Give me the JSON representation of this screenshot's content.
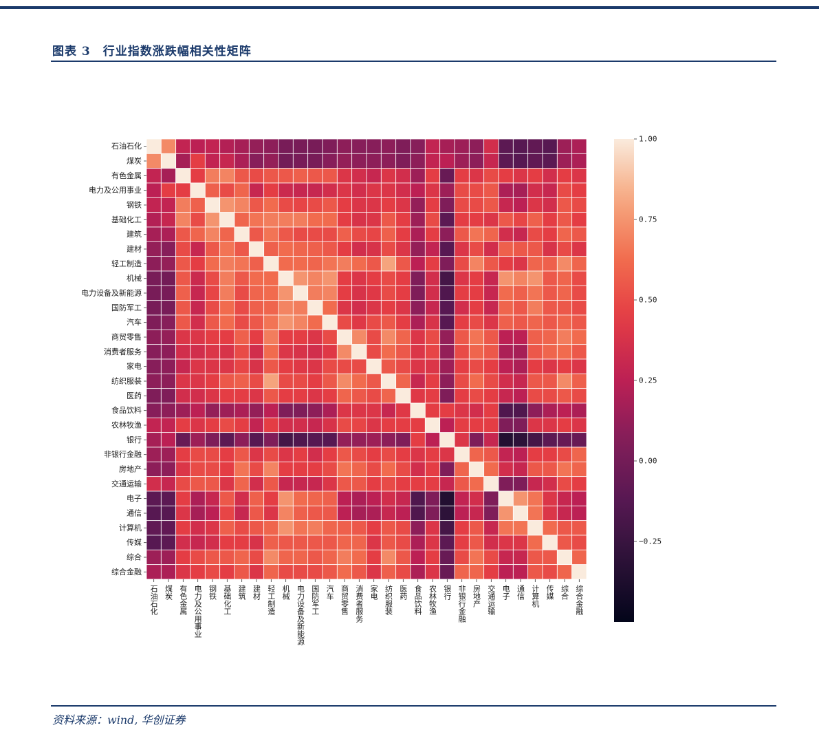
{
  "figure": {
    "title": "图表 3　行业指数涨跌幅相关性矩阵",
    "source": "资料来源：wind, 华创证券"
  },
  "chart_data": {
    "type": "heatmap",
    "title": "",
    "xlabel": "",
    "ylabel": "",
    "labels": [
      "石油石化",
      "煤炭",
      "有色金属",
      "电力及公用事业",
      "钢铁",
      "基础化工",
      "建筑",
      "建材",
      "轻工制造",
      "机械",
      "电力设备及新能源",
      "国防军工",
      "汽车",
      "商贸零售",
      "消费者服务",
      "家电",
      "纺织服装",
      "医药",
      "食品饮料",
      "农林牧渔",
      "银行",
      "非银行金融",
      "房地产",
      "交通运输",
      "电子",
      "通信",
      "计算机",
      "传媒",
      "综合",
      "综合金融"
    ],
    "colorbar": {
      "min": -0.5,
      "max": 1.0,
      "ticks": [
        "1.00",
        "0.75",
        "0.50",
        "0.25",
        "0.00",
        "−0.25"
      ],
      "tick_values": [
        1.0,
        0.75,
        0.5,
        0.25,
        0.0,
        -0.25
      ]
    },
    "matrix": [
      [
        1.0,
        0.72,
        0.28,
        0.25,
        0.28,
        0.22,
        0.18,
        0.12,
        0.1,
        0.02,
        0.02,
        0.02,
        0.05,
        0.1,
        0.08,
        0.08,
        0.1,
        0.05,
        0.08,
        0.28,
        0.18,
        0.15,
        0.1,
        0.35,
        -0.1,
        -0.12,
        -0.08,
        -0.12,
        0.15,
        0.2
      ],
      [
        0.72,
        1.0,
        0.18,
        0.45,
        0.28,
        0.3,
        0.2,
        0.08,
        0.12,
        0.0,
        0.02,
        0.02,
        0.08,
        0.12,
        0.1,
        0.1,
        0.1,
        0.05,
        0.1,
        0.28,
        0.25,
        0.15,
        0.1,
        0.3,
        -0.1,
        -0.12,
        -0.08,
        -0.1,
        0.15,
        0.2
      ],
      [
        0.28,
        0.18,
        1.0,
        0.45,
        0.68,
        0.7,
        0.55,
        0.5,
        0.55,
        0.55,
        0.58,
        0.55,
        0.55,
        0.4,
        0.35,
        0.3,
        0.4,
        0.35,
        0.15,
        0.45,
        -0.05,
        0.45,
        0.4,
        0.5,
        0.45,
        0.4,
        0.45,
        0.35,
        0.45,
        0.4
      ],
      [
        0.25,
        0.45,
        0.45,
        1.0,
        0.58,
        0.5,
        0.6,
        0.3,
        0.45,
        0.32,
        0.3,
        0.3,
        0.35,
        0.4,
        0.35,
        0.4,
        0.4,
        0.35,
        0.25,
        0.4,
        0.15,
        0.5,
        0.5,
        0.55,
        0.2,
        0.18,
        0.35,
        0.3,
        0.5,
        0.45
      ],
      [
        0.28,
        0.28,
        0.68,
        0.58,
        1.0,
        0.75,
        0.7,
        0.55,
        0.62,
        0.5,
        0.48,
        0.5,
        0.55,
        0.45,
        0.4,
        0.4,
        0.45,
        0.4,
        0.12,
        0.45,
        0.05,
        0.5,
        0.5,
        0.55,
        0.3,
        0.25,
        0.4,
        0.35,
        0.55,
        0.5
      ],
      [
        0.22,
        0.3,
        0.7,
        0.5,
        0.75,
        1.0,
        0.6,
        0.65,
        0.68,
        0.68,
        0.68,
        0.62,
        0.62,
        0.45,
        0.38,
        0.4,
        0.55,
        0.45,
        0.15,
        0.5,
        -0.1,
        0.45,
        0.45,
        0.4,
        0.55,
        0.48,
        0.58,
        0.45,
        0.55,
        0.45
      ],
      [
        0.18,
        0.2,
        0.55,
        0.6,
        0.7,
        0.6,
        1.0,
        0.55,
        0.65,
        0.55,
        0.5,
        0.5,
        0.5,
        0.58,
        0.5,
        0.48,
        0.58,
        0.45,
        0.2,
        0.45,
        0.1,
        0.55,
        0.65,
        0.6,
        0.35,
        0.3,
        0.5,
        0.45,
        0.6,
        0.55
      ],
      [
        0.12,
        0.08,
        0.5,
        0.3,
        0.55,
        0.65,
        0.55,
        1.0,
        0.58,
        0.62,
        0.6,
        0.58,
        0.55,
        0.45,
        0.35,
        0.38,
        0.5,
        0.4,
        0.12,
        0.28,
        -0.12,
        0.4,
        0.5,
        0.35,
        0.58,
        0.55,
        0.55,
        0.38,
        0.5,
        0.4
      ],
      [
        0.1,
        0.12,
        0.55,
        0.45,
        0.62,
        0.68,
        0.65,
        0.58,
        1.0,
        0.62,
        0.62,
        0.6,
        0.65,
        0.68,
        0.62,
        0.55,
        0.8,
        0.55,
        0.25,
        0.45,
        0.05,
        0.5,
        0.7,
        0.55,
        0.45,
        0.4,
        0.6,
        0.58,
        0.72,
        0.6
      ],
      [
        0.02,
        0.0,
        0.55,
        0.32,
        0.5,
        0.68,
        0.55,
        0.62,
        0.62,
        1.0,
        0.75,
        0.7,
        0.75,
        0.45,
        0.4,
        0.45,
        0.5,
        0.45,
        0.05,
        0.35,
        -0.2,
        0.4,
        0.45,
        0.3,
        0.75,
        0.7,
        0.75,
        0.55,
        0.6,
        0.5
      ],
      [
        0.02,
        0.02,
        0.58,
        0.3,
        0.48,
        0.68,
        0.5,
        0.6,
        0.62,
        0.75,
        1.0,
        0.68,
        0.7,
        0.45,
        0.38,
        0.42,
        0.5,
        0.45,
        0.05,
        0.35,
        -0.15,
        0.45,
        0.45,
        0.3,
        0.62,
        0.58,
        0.65,
        0.55,
        0.6,
        0.5
      ],
      [
        0.02,
        0.02,
        0.55,
        0.3,
        0.5,
        0.62,
        0.5,
        0.58,
        0.6,
        0.7,
        0.68,
        1.0,
        0.62,
        0.4,
        0.35,
        0.4,
        0.45,
        0.4,
        0.1,
        0.3,
        -0.12,
        0.35,
        0.45,
        0.3,
        0.6,
        0.55,
        0.68,
        0.55,
        0.55,
        0.5
      ],
      [
        0.05,
        0.08,
        0.55,
        0.35,
        0.55,
        0.62,
        0.5,
        0.55,
        0.65,
        0.75,
        0.7,
        0.62,
        1.0,
        0.5,
        0.42,
        0.5,
        0.55,
        0.45,
        0.2,
        0.38,
        -0.12,
        0.45,
        0.5,
        0.4,
        0.58,
        0.55,
        0.6,
        0.55,
        0.6,
        0.55
      ],
      [
        0.1,
        0.12,
        0.4,
        0.4,
        0.45,
        0.45,
        0.58,
        0.45,
        0.68,
        0.45,
        0.45,
        0.4,
        0.5,
        1.0,
        0.72,
        0.5,
        0.72,
        0.6,
        0.4,
        0.5,
        0.12,
        0.55,
        0.65,
        0.55,
        0.25,
        0.25,
        0.58,
        0.6,
        0.68,
        0.62
      ],
      [
        0.08,
        0.1,
        0.35,
        0.35,
        0.4,
        0.38,
        0.5,
        0.35,
        0.62,
        0.4,
        0.38,
        0.35,
        0.42,
        0.72,
        1.0,
        0.5,
        0.62,
        0.55,
        0.4,
        0.48,
        0.12,
        0.5,
        0.6,
        0.55,
        0.2,
        0.18,
        0.55,
        0.6,
        0.62,
        0.55
      ],
      [
        0.08,
        0.1,
        0.3,
        0.4,
        0.4,
        0.4,
        0.48,
        0.38,
        0.55,
        0.45,
        0.42,
        0.4,
        0.5,
        0.5,
        0.5,
        1.0,
        0.55,
        0.5,
        0.4,
        0.4,
        0.15,
        0.45,
        0.5,
        0.45,
        0.25,
        0.2,
        0.45,
        0.4,
        0.45,
        0.4
      ],
      [
        0.1,
        0.1,
        0.4,
        0.4,
        0.45,
        0.55,
        0.58,
        0.5,
        0.8,
        0.5,
        0.5,
        0.45,
        0.55,
        0.72,
        0.62,
        0.55,
        1.0,
        0.6,
        0.3,
        0.45,
        0.1,
        0.5,
        0.62,
        0.5,
        0.35,
        0.3,
        0.55,
        0.55,
        0.72,
        0.58
      ],
      [
        0.05,
        0.05,
        0.35,
        0.35,
        0.4,
        0.45,
        0.45,
        0.4,
        0.55,
        0.45,
        0.45,
        0.4,
        0.45,
        0.6,
        0.55,
        0.5,
        0.6,
        1.0,
        0.42,
        0.45,
        0.05,
        0.45,
        0.5,
        0.45,
        0.3,
        0.25,
        0.5,
        0.5,
        0.55,
        0.5
      ],
      [
        0.08,
        0.1,
        0.15,
        0.25,
        0.12,
        0.15,
        0.2,
        0.12,
        0.25,
        0.05,
        0.05,
        0.1,
        0.2,
        0.4,
        0.4,
        0.4,
        0.3,
        0.42,
        1.0,
        0.45,
        0.45,
        0.4,
        0.35,
        0.45,
        -0.15,
        -0.15,
        0.1,
        0.2,
        0.25,
        0.2
      ],
      [
        0.28,
        0.28,
        0.45,
        0.4,
        0.45,
        0.5,
        0.45,
        0.28,
        0.45,
        0.35,
        0.35,
        0.3,
        0.38,
        0.5,
        0.48,
        0.4,
        0.45,
        0.45,
        0.45,
        1.0,
        0.25,
        0.45,
        0.45,
        0.45,
        0.05,
        0.05,
        0.4,
        0.4,
        0.45,
        0.4
      ],
      [
        0.18,
        0.25,
        -0.05,
        0.15,
        0.05,
        -0.1,
        0.1,
        -0.12,
        0.05,
        -0.2,
        -0.15,
        -0.12,
        -0.12,
        0.12,
        0.12,
        0.15,
        0.1,
        0.05,
        0.45,
        0.25,
        1.0,
        0.4,
        0.05,
        0.3,
        -0.35,
        -0.3,
        -0.2,
        -0.1,
        -0.05,
        -0.05
      ],
      [
        0.15,
        0.15,
        0.45,
        0.5,
        0.5,
        0.45,
        0.55,
        0.4,
        0.5,
        0.4,
        0.45,
        0.35,
        0.45,
        0.55,
        0.5,
        0.45,
        0.5,
        0.45,
        0.4,
        0.45,
        0.4,
        1.0,
        0.6,
        0.55,
        0.28,
        0.25,
        0.45,
        0.45,
        0.5,
        0.6
      ],
      [
        0.1,
        0.1,
        0.4,
        0.5,
        0.5,
        0.45,
        0.65,
        0.5,
        0.7,
        0.45,
        0.45,
        0.45,
        0.5,
        0.65,
        0.6,
        0.5,
        0.62,
        0.5,
        0.35,
        0.45,
        0.05,
        0.6,
        1.0,
        0.62,
        0.35,
        0.3,
        0.55,
        0.55,
        0.65,
        0.6
      ],
      [
        0.35,
        0.3,
        0.5,
        0.55,
        0.55,
        0.4,
        0.6,
        0.35,
        0.55,
        0.3,
        0.3,
        0.3,
        0.4,
        0.55,
        0.55,
        0.45,
        0.5,
        0.45,
        0.45,
        0.45,
        0.3,
        0.55,
        0.62,
        1.0,
        0.05,
        0.05,
        0.3,
        0.35,
        0.5,
        0.45
      ],
      [
        -0.1,
        -0.1,
        0.45,
        0.2,
        0.3,
        0.55,
        0.35,
        0.58,
        0.45,
        0.75,
        0.62,
        0.6,
        0.58,
        0.25,
        0.2,
        0.25,
        0.35,
        0.3,
        -0.15,
        0.05,
        -0.35,
        0.28,
        0.35,
        0.05,
        1.0,
        0.75,
        0.65,
        0.4,
        0.3,
        0.25
      ],
      [
        -0.12,
        -0.12,
        0.4,
        0.18,
        0.25,
        0.48,
        0.3,
        0.55,
        0.4,
        0.7,
        0.58,
        0.55,
        0.55,
        0.25,
        0.18,
        0.2,
        0.3,
        0.25,
        -0.15,
        0.05,
        -0.3,
        0.25,
        0.3,
        0.05,
        0.75,
        1.0,
        0.65,
        0.4,
        0.3,
        0.25
      ],
      [
        -0.08,
        -0.08,
        0.45,
        0.35,
        0.4,
        0.58,
        0.5,
        0.55,
        0.6,
        0.75,
        0.65,
        0.68,
        0.6,
        0.58,
        0.55,
        0.45,
        0.55,
        0.5,
        0.1,
        0.4,
        -0.2,
        0.45,
        0.55,
        0.3,
        0.65,
        0.65,
        1.0,
        0.62,
        0.55,
        0.55
      ],
      [
        -0.12,
        -0.1,
        0.35,
        0.3,
        0.35,
        0.45,
        0.45,
        0.38,
        0.58,
        0.55,
        0.55,
        0.55,
        0.55,
        0.6,
        0.6,
        0.4,
        0.55,
        0.5,
        0.2,
        0.4,
        -0.1,
        0.45,
        0.55,
        0.35,
        0.4,
        0.4,
        0.62,
        1.0,
        0.55,
        0.5
      ],
      [
        0.15,
        0.15,
        0.45,
        0.5,
        0.55,
        0.55,
        0.6,
        0.5,
        0.72,
        0.6,
        0.6,
        0.55,
        0.6,
        0.68,
        0.62,
        0.45,
        0.72,
        0.55,
        0.25,
        0.45,
        -0.05,
        0.5,
        0.65,
        0.5,
        0.3,
        0.3,
        0.55,
        0.55,
        1.0,
        0.6
      ],
      [
        0.2,
        0.2,
        0.4,
        0.45,
        0.5,
        0.45,
        0.55,
        0.4,
        0.6,
        0.5,
        0.5,
        0.5,
        0.55,
        0.62,
        0.55,
        0.4,
        0.58,
        0.5,
        0.2,
        0.4,
        -0.05,
        0.6,
        0.6,
        0.45,
        0.25,
        0.25,
        0.55,
        0.5,
        0.6,
        1.0
      ]
    ]
  }
}
